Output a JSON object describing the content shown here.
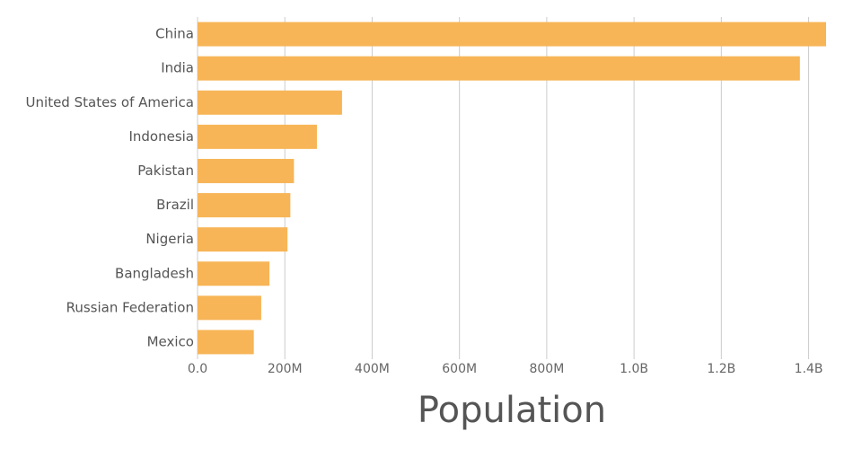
{
  "chart_data": {
    "type": "bar",
    "orientation": "horizontal",
    "categories": [
      "China",
      "India",
      "United States of America",
      "Indonesia",
      "Pakistan",
      "Brazil",
      "Nigeria",
      "Bangladesh",
      "Russian Federation",
      "Mexico"
    ],
    "values": [
      1440000000,
      1380000000,
      331000000,
      273500000,
      220900000,
      212600000,
      206100000,
      164700000,
      145900000,
      128900000
    ],
    "xlabel": "Population",
    "ylabel": "",
    "xlim": [
      0,
      1440000000
    ],
    "x_ticks": [
      0,
      200000000,
      400000000,
      600000000,
      800000000,
      1000000000,
      1200000000,
      1400000000
    ],
    "x_tick_labels": [
      "0.0",
      "200M",
      "400M",
      "600M",
      "800M",
      "1.0B",
      "1.2B",
      "1.4B"
    ],
    "bar_color": "#F7B557",
    "grid": "vertical"
  }
}
